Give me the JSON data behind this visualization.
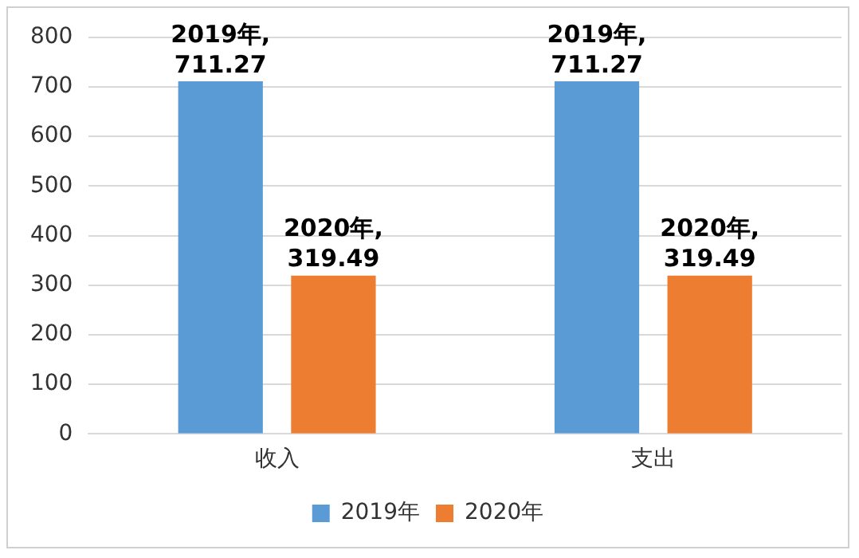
{
  "chart_data": {
    "type": "bar",
    "categories": [
      "收入",
      "支出"
    ],
    "series": [
      {
        "name": "2019年",
        "color": "#5b9bd5",
        "values": [
          711.27,
          711.27
        ],
        "value_labels": [
          "2019年,\n711.27",
          "2019年,\n711.27"
        ]
      },
      {
        "name": "2020年",
        "color": "#ed7d31",
        "values": [
          319.49,
          319.49
        ],
        "value_labels": [
          "2020年,\n319.49",
          "2020年,\n319.49"
        ]
      }
    ],
    "ylim": [
      0,
      800
    ],
    "yticks": [
      0,
      100,
      200,
      300,
      400,
      500,
      600,
      700,
      800
    ],
    "grid": "y",
    "legend": "bottom"
  }
}
